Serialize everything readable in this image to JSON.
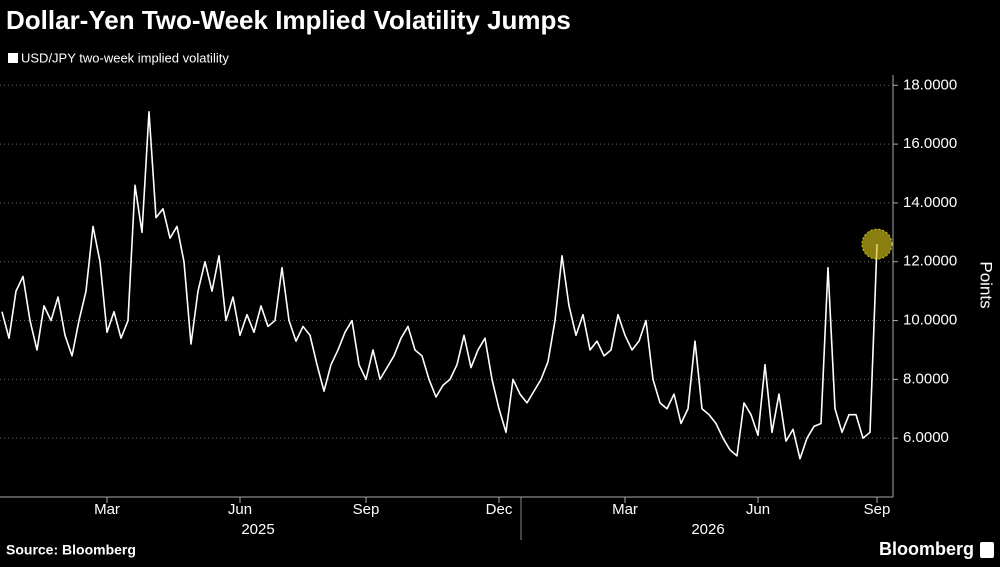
{
  "chart_data": {
    "type": "line",
    "title": "Dollar-Yen Two-Week Implied Volatility Jumps",
    "y_axis_label": "Points",
    "source": "Source: Bloomberg",
    "brand": "Bloomberg",
    "years": [
      "2025",
      "2026"
    ],
    "categories": [
      null,
      null,
      null,
      null,
      null,
      null,
      null,
      null,
      null,
      null,
      null,
      null,
      null,
      null,
      null,
      "Mar",
      null,
      null,
      null,
      null,
      null,
      null,
      null,
      null,
      null,
      null,
      null,
      null,
      null,
      null,
      null,
      null,
      null,
      null,
      "Jun",
      null,
      null,
      null,
      null,
      null,
      null,
      null,
      null,
      null,
      null,
      null,
      null,
      null,
      null,
      null,
      null,
      null,
      "Sep",
      null,
      null,
      null,
      null,
      null,
      null,
      null,
      null,
      null,
      null,
      null,
      null,
      null,
      null,
      null,
      null,
      null,
      null,
      "Dec",
      null,
      null,
      null,
      null,
      null,
      null,
      null,
      null,
      null,
      null,
      null,
      null,
      null,
      null,
      null,
      null,
      null,
      "Mar",
      null,
      null,
      null,
      null,
      null,
      null,
      null,
      null,
      null,
      null,
      null,
      null,
      null,
      null,
      null,
      null,
      null,
      null,
      "Jun",
      null,
      null,
      null,
      null,
      null,
      null,
      null,
      null,
      null,
      null,
      null,
      null,
      null,
      null,
      null,
      null,
      "Sep"
    ],
    "series": [
      {
        "name": "USD/JPY two-week implied volatility",
        "color": "#ffffff",
        "values": [
          10.3,
          9.4,
          11.0,
          11.5,
          10.0,
          9.0,
          10.5,
          10.0,
          10.8,
          9.5,
          8.8,
          10.0,
          11.0,
          13.2,
          12.0,
          9.6,
          10.3,
          9.4,
          10.0,
          14.6,
          13.0,
          17.1,
          13.5,
          13.8,
          12.8,
          13.2,
          12.0,
          9.2,
          11.0,
          12.0,
          11.0,
          12.2,
          10.0,
          10.8,
          9.5,
          10.2,
          9.6,
          10.5,
          9.8,
          10.0,
          11.8,
          10.0,
          9.3,
          9.8,
          9.5,
          8.5,
          7.6,
          8.5,
          9.0,
          9.6,
          10.0,
          8.5,
          8.0,
          9.0,
          8.0,
          8.4,
          8.8,
          9.4,
          9.8,
          9.0,
          8.8,
          8.0,
          7.4,
          7.8,
          8.0,
          8.5,
          9.5,
          8.4,
          9.0,
          9.4,
          8.0,
          7.0,
          6.2,
          8.0,
          7.5,
          7.2,
          7.6,
          8.0,
          8.6,
          10.0,
          12.2,
          10.5,
          9.5,
          10.2,
          9.0,
          9.3,
          8.8,
          9.0,
          10.2,
          9.5,
          9.0,
          9.3,
          10.0,
          8.0,
          7.2,
          7.0,
          7.5,
          6.5,
          7.0,
          9.3,
          7.0,
          6.8,
          6.5,
          6.0,
          5.6,
          5.4,
          7.2,
          6.8,
          6.1,
          8.5,
          6.2,
          7.5,
          5.9,
          6.3,
          5.3,
          6.0,
          6.4,
          6.5,
          11.8,
          7.0,
          6.2,
          6.8,
          6.8,
          6.0,
          6.2,
          12.6
        ]
      }
    ],
    "ylim": [
      4,
      18.35
    ],
    "yticks": [
      {
        "value": 6,
        "label": "6.0000"
      },
      {
        "value": 8,
        "label": "8.0000"
      },
      {
        "value": 10,
        "label": "10.0000"
      },
      {
        "value": 12,
        "label": "12.0000"
      },
      {
        "value": 14,
        "label": "14.0000"
      },
      {
        "value": 16,
        "label": "16.0000"
      },
      {
        "value": 18,
        "label": "18.0000"
      }
    ],
    "grid": true,
    "highlight_last": true,
    "highlight_color": "#d4c21a"
  }
}
